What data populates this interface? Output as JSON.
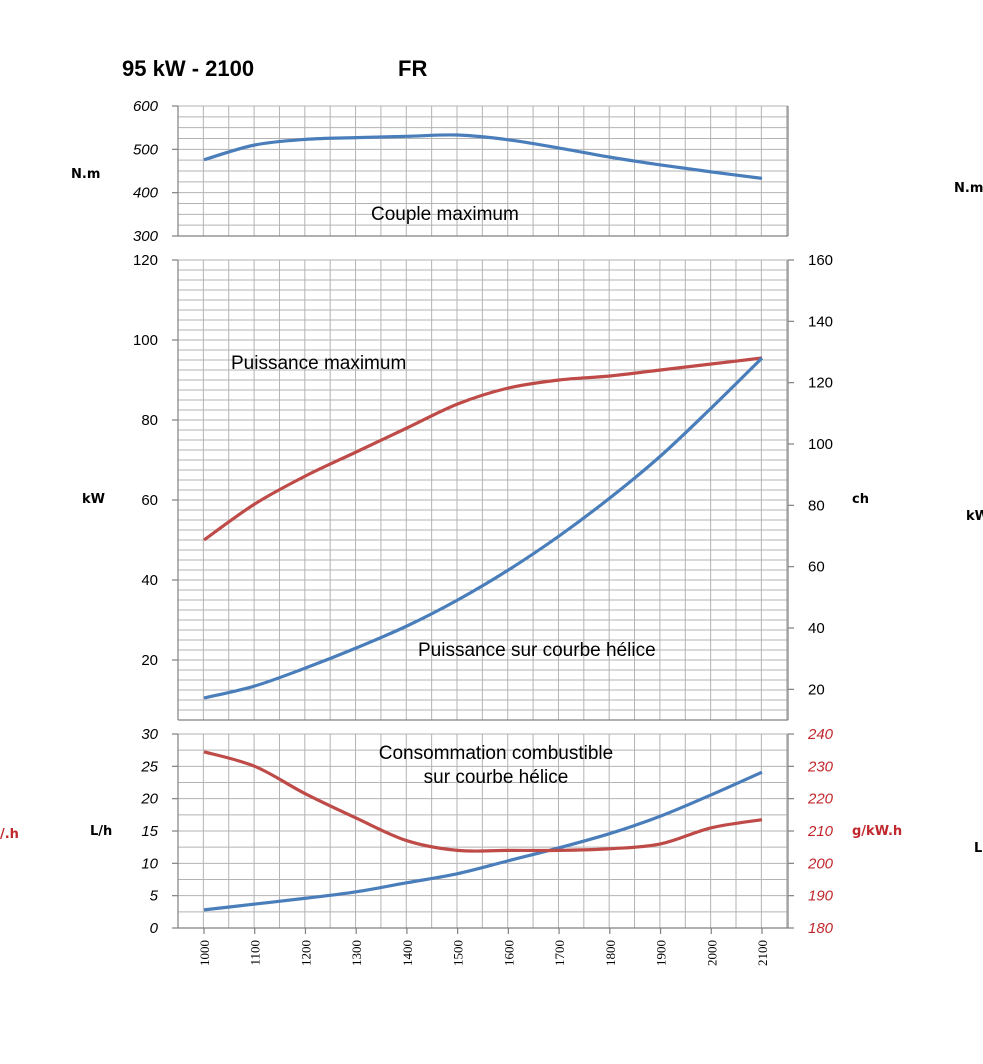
{
  "header": {
    "power_label": "95 kW - 2100",
    "lang_label": "FR"
  },
  "side_labels": {
    "right_nm": "N.m",
    "right_kw": "kW",
    "right_l": "L",
    "left_gkwh": "/.h"
  },
  "colors": {
    "torque": "#4a7ebb",
    "power_max": "#be4b48",
    "power_propeller": "#4a7ebb",
    "consumption_lh": "#4a7ebb",
    "consumption_gkwh": "#be4b48"
  },
  "chart_data": [
    {
      "type": "line",
      "x": [
        1000,
        1100,
        1200,
        1300,
        1400,
        1500,
        1600,
        1700,
        1800,
        1900,
        2000,
        2100
      ],
      "xticks": [
        "1000",
        "1100",
        "1200",
        "1300",
        "1400",
        "1500",
        "1600",
        "1700",
        "1800",
        "1900",
        "2000",
        "2100"
      ],
      "ylabel": "N.m",
      "ylim": [
        300,
        600
      ],
      "yticks": [
        "600",
        "500",
        "400",
        "300"
      ],
      "annotation": "Couple maximum",
      "series": [
        {
          "values": [
            476,
            510,
            523,
            527,
            530,
            533,
            522,
            503,
            482,
            464,
            448,
            433
          ]
        }
      ],
      "grid": true
    },
    {
      "type": "line",
      "x": [
        1000,
        1100,
        1200,
        1300,
        1400,
        1500,
        1600,
        1700,
        1800,
        1900,
        2000,
        2100
      ],
      "ylabel": "kW",
      "ylim": [
        5,
        120
      ],
      "yticks": [
        "120",
        "100",
        "80",
        "60",
        "40",
        "20"
      ],
      "y2label": "ch",
      "y2lim": [
        10,
        160
      ],
      "y2ticks": [
        "160",
        "140",
        "120",
        "100",
        "80",
        "60",
        "40",
        "20"
      ],
      "annotations": [
        "Puissance maximum",
        "Puissance sur courbe hélice"
      ],
      "series": [
        {
          "values": [
            50,
            59,
            66,
            72,
            78,
            84,
            88,
            90,
            91,
            92.5,
            94,
            95.5
          ]
        },
        {
          "values": [
            10.5,
            13.5,
            18,
            23,
            28.5,
            35,
            42.5,
            51,
            60.5,
            71,
            83,
            95.5
          ]
        }
      ],
      "grid": true
    },
    {
      "type": "line",
      "x": [
        1000,
        1100,
        1200,
        1300,
        1400,
        1500,
        1600,
        1700,
        1800,
        1900,
        2000,
        2100
      ],
      "ylabel": "L/h",
      "ylim": [
        0,
        30
      ],
      "yticks": [
        "30",
        "25",
        "20",
        "15",
        "10",
        "5",
        "0"
      ],
      "y2label": "g/kW.h",
      "y2lim": [
        180,
        240
      ],
      "y2ticks": [
        "240",
        "230",
        "220",
        "210",
        "200",
        "190",
        "180"
      ],
      "annotation": [
        "Consommation combustible",
        "sur courbe hélice"
      ],
      "series": [
        {
          "axis": "left",
          "values": [
            2.8,
            3.7,
            4.6,
            5.6,
            7.0,
            8.4,
            10.4,
            12.4,
            14.6,
            17.3,
            20.6,
            24.1
          ]
        },
        {
          "axis": "right",
          "values": [
            234.5,
            230,
            221.5,
            214,
            207,
            204,
            204,
            204,
            204.5,
            206,
            211,
            213.5
          ]
        }
      ],
      "grid": true
    }
  ]
}
